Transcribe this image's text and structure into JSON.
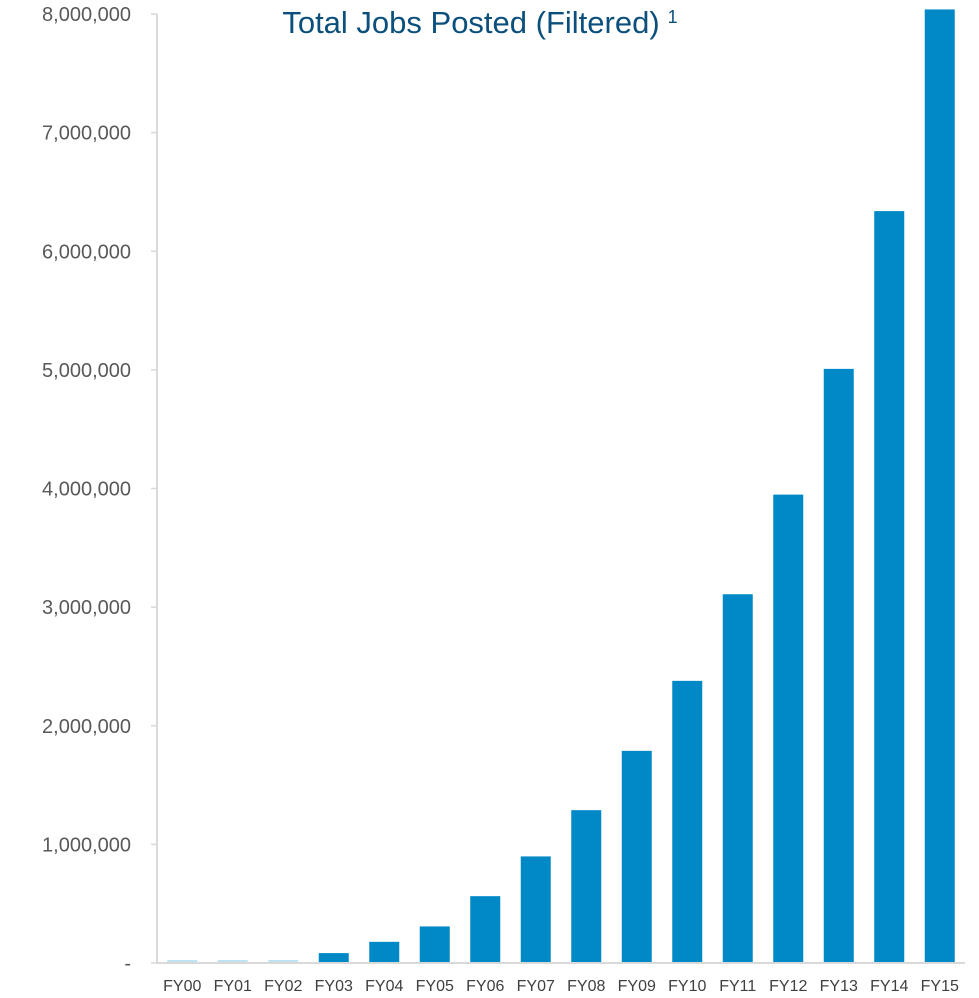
{
  "chart_data": {
    "type": "bar",
    "title": "Total Jobs Posted (Filtered)",
    "title_superscript": "1",
    "xlabel": "",
    "ylabel": "",
    "categories": [
      "FY00",
      "FY01",
      "FY02",
      "FY03",
      "FY04",
      "FY05",
      "FY06",
      "FY07",
      "FY08",
      "FY09",
      "FY10",
      "FY11",
      "FY12",
      "FY13",
      "FY14",
      "FY15"
    ],
    "values": [
      5000,
      8000,
      12000,
      75000,
      170000,
      300000,
      555000,
      890000,
      1280000,
      1780000,
      2370000,
      3100000,
      3940000,
      5000000,
      6330000,
      8030000
    ],
    "ylim": [
      0,
      8000000
    ],
    "yticks": [
      0,
      1000000,
      2000000,
      3000000,
      4000000,
      5000000,
      6000000,
      7000000,
      8000000
    ],
    "ytick_labels": [
      "-",
      "1,000,000",
      "2,000,000",
      "3,000,000",
      "4,000,000",
      "5,000,000",
      "6,000,000",
      "7,000,000",
      "8,000,000"
    ],
    "grid": false,
    "legend": "none",
    "colors": {
      "bar": "#0089c6",
      "bar_faint": "#bfe3f3",
      "title": "#0b4f7c"
    }
  }
}
